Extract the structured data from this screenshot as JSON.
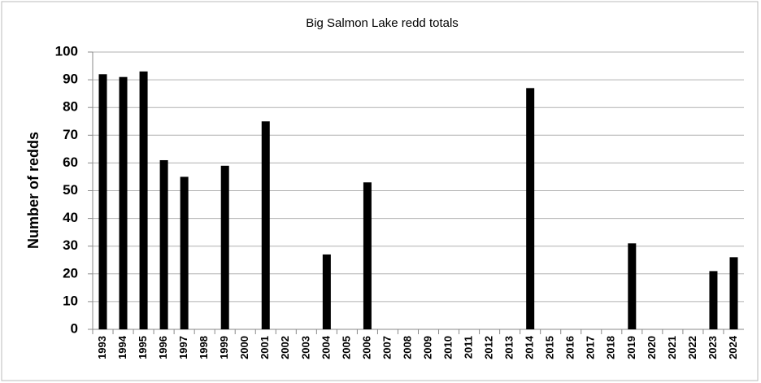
{
  "chart_data": {
    "type": "bar",
    "title": "Big Salmon Lake redd totals",
    "y_label": "Number of redds",
    "categories": [
      "1993",
      "1994",
      "1995",
      "1996",
      "1997",
      "1998",
      "1999",
      "2000",
      "2001",
      "2002",
      "2003",
      "2004",
      "2005",
      "2006",
      "2007",
      "2008",
      "2009",
      "2010",
      "2011",
      "2012",
      "2013",
      "2014",
      "2015",
      "2016",
      "2017",
      "2018",
      "2019",
      "2020",
      "2021",
      "2022",
      "2023",
      "2024"
    ],
    "values": [
      92,
      91,
      93,
      61,
      55,
      null,
      59,
      null,
      75,
      null,
      null,
      27,
      null,
      53,
      null,
      null,
      null,
      null,
      null,
      null,
      null,
      87,
      null,
      null,
      null,
      null,
      31,
      null,
      null,
      null,
      21,
      26
    ],
    "color": "#000000",
    "ylim": [
      0,
      100
    ],
    "yticks": [
      0,
      10,
      20,
      30,
      40,
      50,
      60,
      70,
      80,
      90,
      100
    ],
    "grid": true
  }
}
